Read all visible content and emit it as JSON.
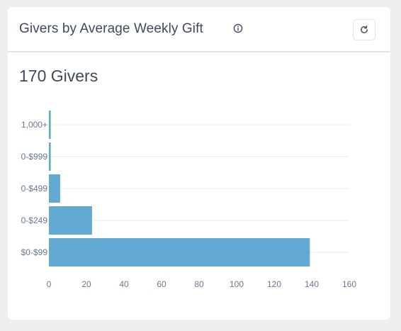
{
  "card": {
    "title": "Givers by Average Weekly Gift",
    "summary": "170 Givers"
  },
  "icons": {
    "info": "info-icon",
    "refresh": "refresh-icon"
  },
  "colors": {
    "bar": "#62aad3",
    "text": "#3e4a5c",
    "axis_text": "#6b7890",
    "grid": "#e9ebee"
  },
  "chart_data": {
    "type": "bar",
    "orientation": "horizontal",
    "categories": [
      "1,000+",
      "0-$999",
      "0-$499",
      "0-$249",
      "$0-$99"
    ],
    "values": [
      1,
      1,
      6,
      23,
      139
    ],
    "xlim": [
      0,
      160
    ],
    "x_ticks": [
      0,
      20,
      40,
      60,
      80,
      100,
      120,
      140,
      160
    ],
    "grid": "horizontal",
    "legend": "none"
  }
}
